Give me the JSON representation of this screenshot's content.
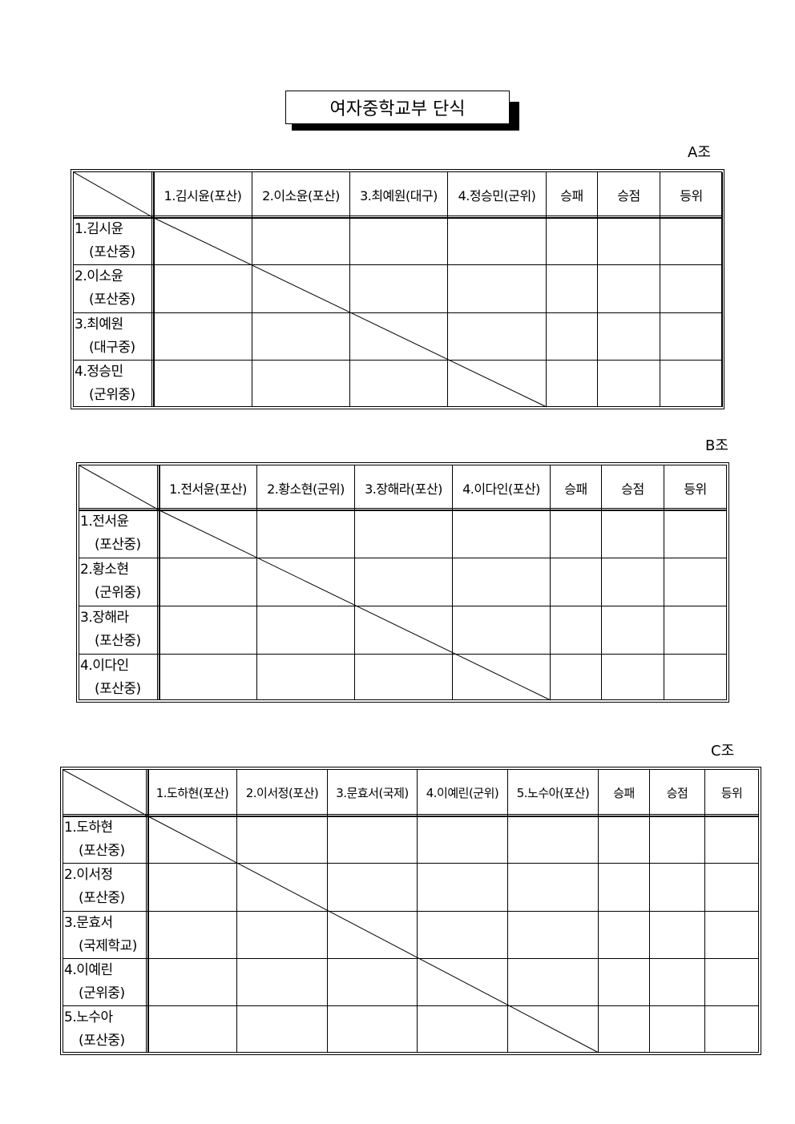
{
  "title": "여자중학교부 단식",
  "groups": [
    {
      "label": "A조",
      "columns": [
        "1.김시윤(포산)",
        "2.이소윤(포산)",
        "3.최예원(대구)",
        "4.정승민(군위)",
        "승패",
        "승점",
        "등위"
      ],
      "rows": [
        {
          "name": "1.김시윤",
          "school": "(포산중)"
        },
        {
          "name": "2.이소윤",
          "school": "(포산중)"
        },
        {
          "name": "3.최예원",
          "school": "(대구중)"
        },
        {
          "name": "4.정승민",
          "school": "(군위중)"
        }
      ]
    },
    {
      "label": "B조",
      "columns": [
        "1.전서윤(포산)",
        "2.황소현(군위)",
        "3.장해라(포산)",
        "4.이다인(포산)",
        "승패",
        "승점",
        "등위"
      ],
      "rows": [
        {
          "name": "1.전서윤",
          "school": "(포산중)"
        },
        {
          "name": "2.황소현",
          "school": "(군위중)"
        },
        {
          "name": "3.장해라",
          "school": "(포산중)"
        },
        {
          "name": "4.이다인",
          "school": "(포산중)"
        }
      ]
    },
    {
      "label": "C조",
      "columns": [
        "1.도하현(포산)",
        "2.이서정(포산)",
        "3.문효서(국제)",
        "4.이예린(군위)",
        "5.노수아(포산)",
        "승패",
        "승점",
        "등위"
      ],
      "rows": [
        {
          "name": "1.도하현",
          "school": "(포산중)"
        },
        {
          "name": "2.이서정",
          "school": "(포산중)"
        },
        {
          "name": "3.문효서",
          "school": "(국제학교)"
        },
        {
          "name": "4.이예린",
          "school": "(군위중)"
        },
        {
          "name": "5.노수아",
          "school": "(포산중)"
        }
      ]
    }
  ]
}
